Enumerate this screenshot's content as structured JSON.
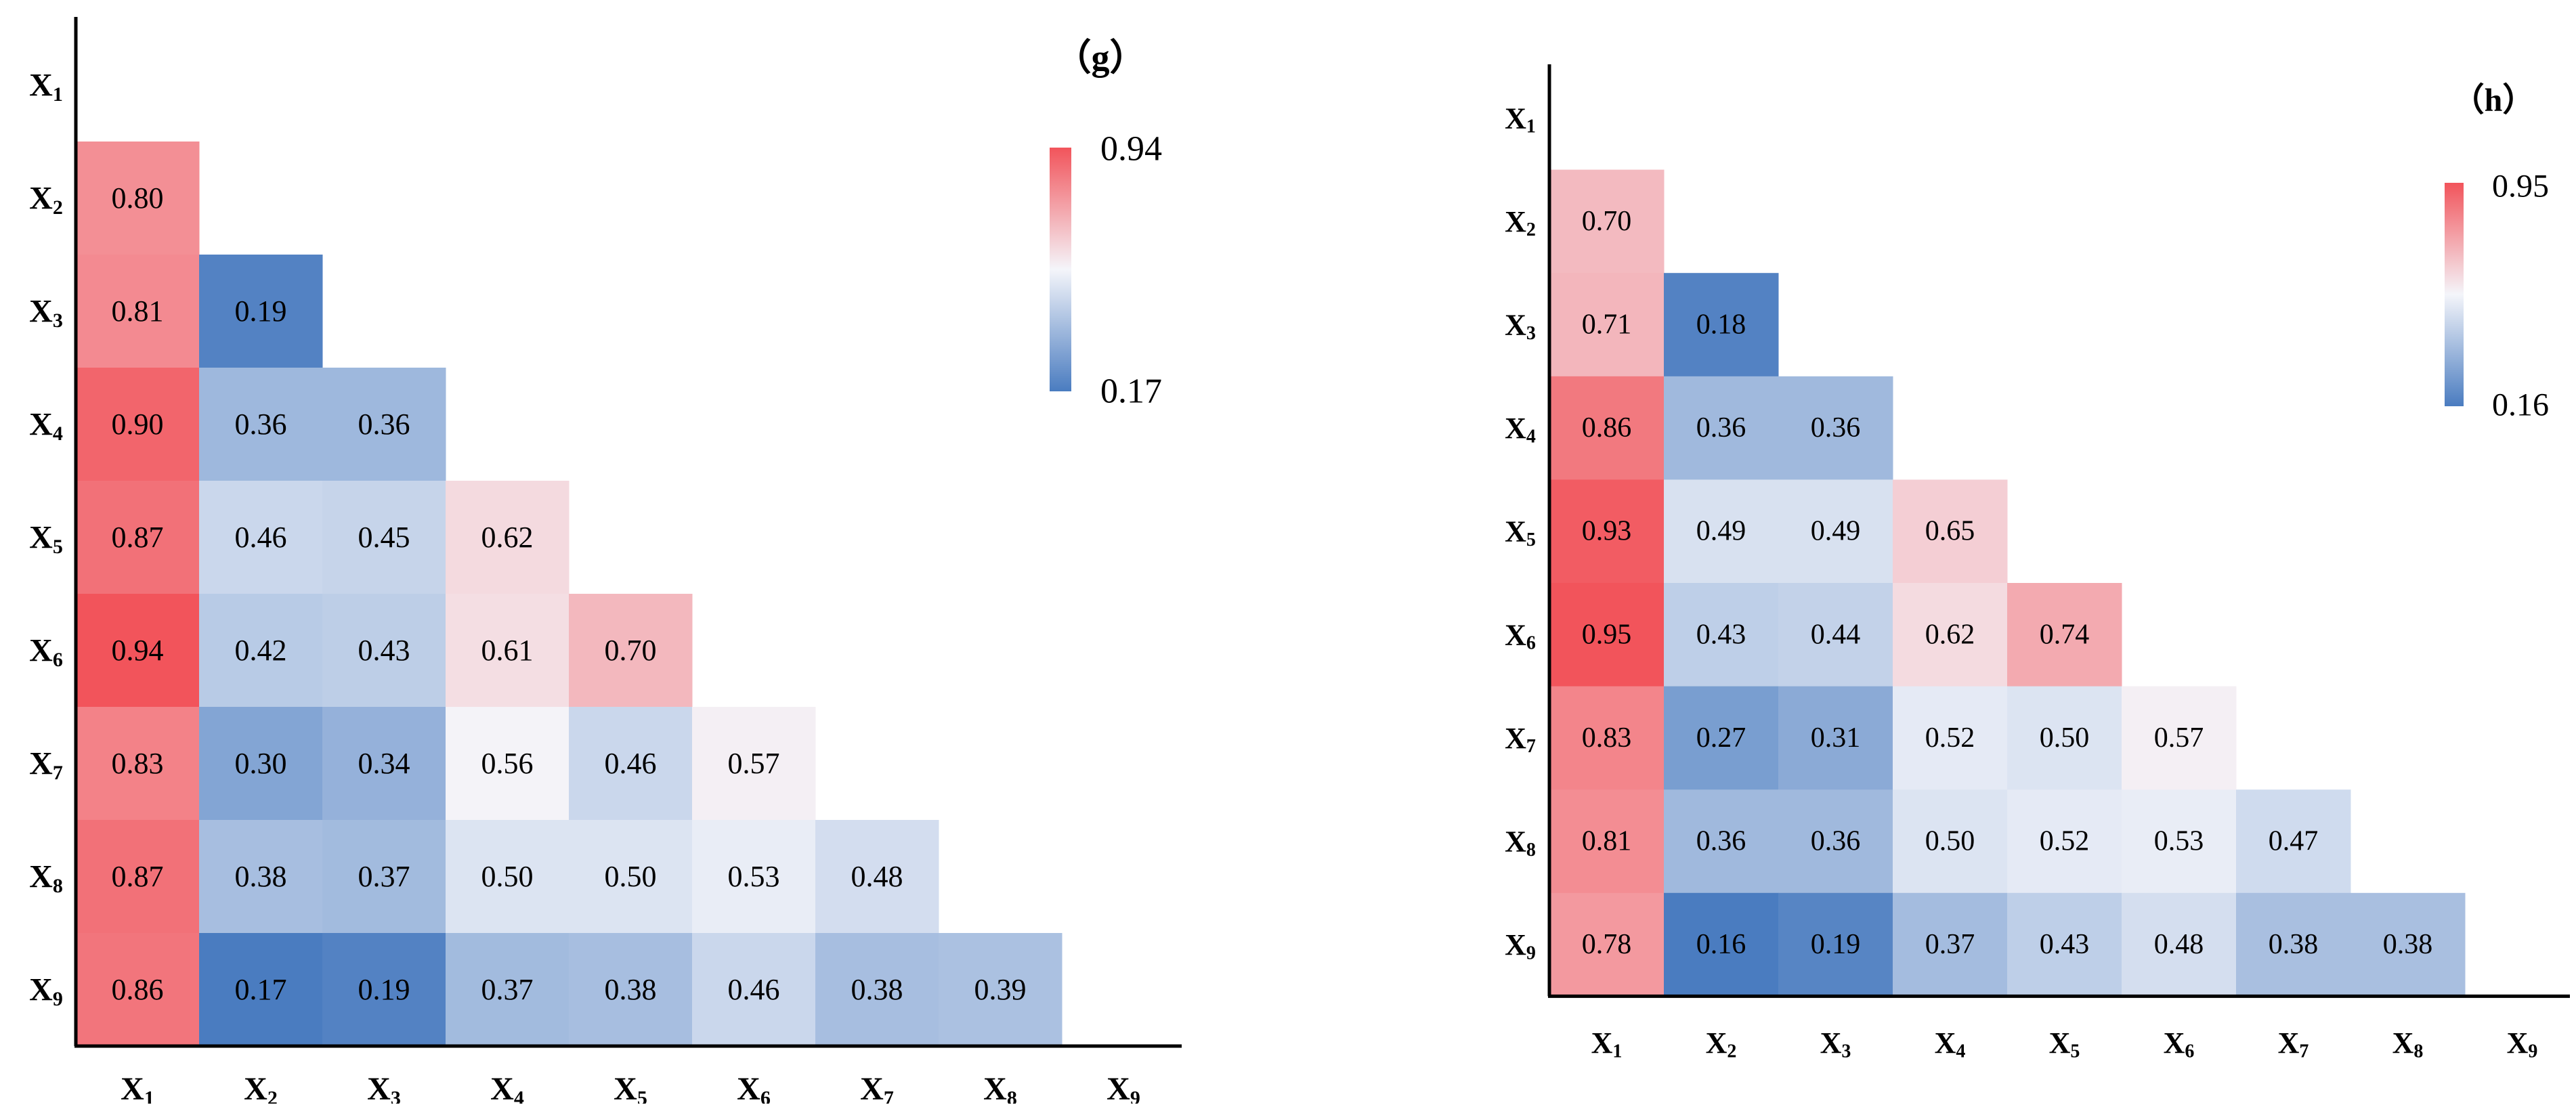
{
  "colors": {
    "low": "#4a7cc0",
    "mid": "#f4f5fa",
    "high": "#f2545b",
    "axis": "#000000"
  },
  "chart_data": [
    {
      "type": "heatmap",
      "panel_label": "（g）",
      "variables": [
        "X",
        "X",
        "X",
        "X",
        "X",
        "X",
        "X",
        "X",
        "X"
      ],
      "subscripts": [
        "1",
        "2",
        "3",
        "4",
        "5",
        "6",
        "7",
        "8",
        "9"
      ],
      "matrix": [
        [],
        [
          0.8
        ],
        [
          0.81,
          0.19
        ],
        [
          0.9,
          0.36,
          0.36
        ],
        [
          0.87,
          0.46,
          0.45,
          0.62
        ],
        [
          0.94,
          0.42,
          0.43,
          0.61,
          0.7
        ],
        [
          0.83,
          0.3,
          0.34,
          0.56,
          0.46,
          0.57
        ],
        [
          0.87,
          0.38,
          0.37,
          0.5,
          0.5,
          0.53,
          0.48
        ],
        [
          0.86,
          0.17,
          0.19,
          0.37,
          0.38,
          0.46,
          0.38,
          0.39
        ]
      ],
      "labels": [
        [],
        [
          "0.80"
        ],
        [
          "0.81",
          "0.19"
        ],
        [
          "0.90",
          "0.36",
          "0.36"
        ],
        [
          "0.87",
          "0.46",
          "0.45",
          "0.62"
        ],
        [
          "0.94",
          "0.42",
          "0.43",
          "0.61",
          "0.70"
        ],
        [
          "0.83",
          "0.30",
          "0.34",
          "0.56",
          "0.46",
          "0.57"
        ],
        [
          "0.87",
          "0.38",
          "0.37",
          "0.50",
          "0.50",
          "0.53",
          "0.48"
        ],
        [
          "0.86",
          "0.17",
          "0.19",
          "0.37",
          "0.38",
          "0.46",
          "0.38",
          "0.39"
        ]
      ],
      "colorbar": {
        "min": 0.17,
        "max": 0.94,
        "min_label": "0.17",
        "max_label": "0.94"
      }
    },
    {
      "type": "heatmap",
      "panel_label": "（h）",
      "variables": [
        "X",
        "X",
        "X",
        "X",
        "X",
        "X",
        "X",
        "X",
        "X"
      ],
      "subscripts": [
        "1",
        "2",
        "3",
        "4",
        "5",
        "6",
        "7",
        "8",
        "9"
      ],
      "matrix": [
        [],
        [
          0.7
        ],
        [
          0.71,
          0.18
        ],
        [
          0.86,
          0.36,
          0.36
        ],
        [
          0.93,
          0.49,
          0.49,
          0.65
        ],
        [
          0.95,
          0.43,
          0.44,
          0.62,
          0.74
        ],
        [
          0.83,
          0.27,
          0.31,
          0.52,
          0.5,
          0.57
        ],
        [
          0.81,
          0.36,
          0.36,
          0.5,
          0.52,
          0.53,
          0.47
        ],
        [
          0.78,
          0.16,
          0.19,
          0.37,
          0.43,
          0.48,
          0.38,
          0.38
        ]
      ],
      "labels": [
        [],
        [
          "0.70"
        ],
        [
          "0.71",
          "0.18"
        ],
        [
          "0.86",
          "0.36",
          "0.36"
        ],
        [
          "0.93",
          "0.49",
          "0.49",
          "0.65"
        ],
        [
          "0.95",
          "0.43",
          "0.44",
          "0.62",
          "0.74"
        ],
        [
          "0.83",
          "0.27",
          "0.31",
          "0.52",
          "0.50",
          "0.57"
        ],
        [
          "0.81",
          "0.36",
          "0.36",
          "0.50",
          "0.52",
          "0.53",
          "0.47"
        ],
        [
          "0.78",
          "0.16",
          "0.19",
          "0.37",
          "0.43",
          "0.48",
          "0.38",
          "0.38"
        ]
      ],
      "colorbar": {
        "min": 0.16,
        "max": 0.95,
        "min_label": "0.16",
        "max_label": "0.95"
      }
    }
  ]
}
